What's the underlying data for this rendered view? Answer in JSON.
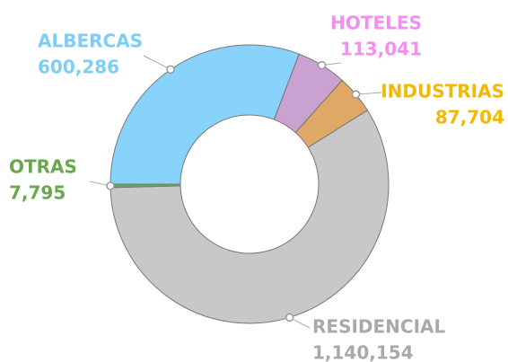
{
  "chart_data": {
    "type": "donut",
    "series": [
      {
        "name": "ALBERCAS",
        "values": [
          600286
        ],
        "value_labels": [
          "600,286"
        ],
        "color": "#87d3fb",
        "label_color": "#7ecdf6"
      },
      {
        "name": "HOTELES",
        "values": [
          113041
        ],
        "value_labels": [
          "113,041"
        ],
        "color": "#c9a2d2",
        "label_color": "#f28ff0"
      },
      {
        "name": "INDUSTRIAS",
        "values": [
          87704
        ],
        "value_labels": [
          "87,704"
        ],
        "color": "#e0a866",
        "label_color": "#f4b800"
      },
      {
        "name": "RESIDENCIAL",
        "values": [
          1140154
        ],
        "value_labels": [
          "1,140,154"
        ],
        "color": "#c8c8c8",
        "label_color": "#a9a9a9"
      },
      {
        "name": "OTRAS",
        "values": [
          7795
        ],
        "value_labels": [
          "7,795"
        ],
        "color": "#6aa84f",
        "label_color": "#6aa84f"
      }
    ]
  }
}
